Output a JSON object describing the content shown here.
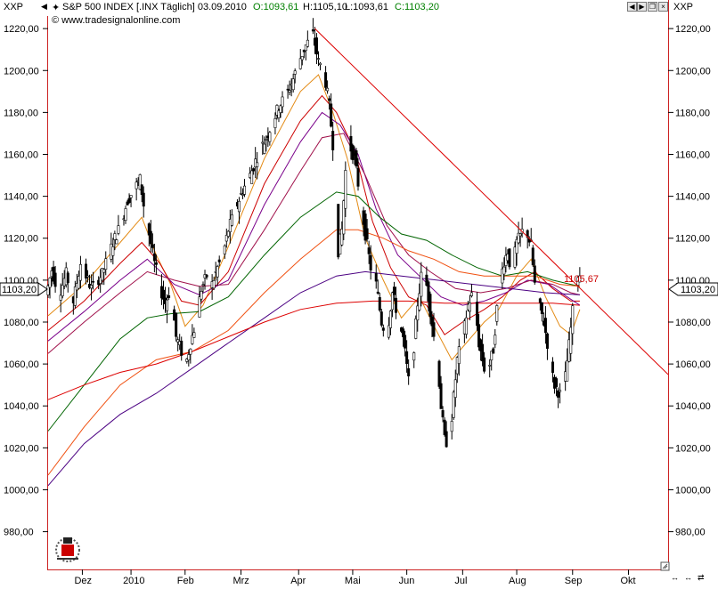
{
  "header": {
    "symbol_left": "XXP",
    "symbol_right": "XXP",
    "instrument": "S&P 500 INDEX [.INX  Täglich] 03.09.2010",
    "open": "O:1093,61",
    "high": "H:1105,10",
    "low": "L:1093,61",
    "close": "C:1103,20",
    "copyright": "© www.tradesignalonline.com",
    "colors": {
      "open": "#008000",
      "close": "#008000",
      "text": "#000000"
    }
  },
  "controls": [
    "arrow-left-icon",
    "arrow-right-icon",
    "restore-icon",
    "close-icon"
  ],
  "bottom_controls": [
    "scroll-horizontal-icon",
    "zoom-horizontal-icon",
    "fit-icon"
  ],
  "price_tag_left": "1103,20",
  "price_tag_right": "1103,20",
  "annotation": {
    "text": "1105,67",
    "color": "#cc0000"
  },
  "chart_data": {
    "type": "candlestick",
    "title": "S&P 500 INDEX [.INX  Täglich] 03.09.2010",
    "ylim": [
      962,
      1226
    ],
    "y_ticks": [
      980,
      1000,
      1020,
      1040,
      1060,
      1080,
      1100,
      1120,
      1140,
      1160,
      1180,
      1200,
      1220
    ],
    "y_tick_labels": [
      "980,00",
      "1000,00",
      "1020,00",
      "1040,00",
      "1060,00",
      "1080,00",
      "1100,00",
      "1120,00",
      "1140,00",
      "1160,00",
      "1180,00",
      "1200,00",
      "1220,00"
    ],
    "x_labels": [
      "Dez",
      "2010",
      "Feb",
      "Mrz",
      "Apr",
      "Mai",
      "Jun",
      "Jul",
      "Aug",
      "Sep",
      "Okt"
    ],
    "x_label_days": [
      19,
      46,
      76,
      107,
      139,
      169,
      199,
      230,
      260,
      291,
      322
    ],
    "x_range_days": [
      0,
      344
    ],
    "grid": false,
    "price_path": [
      [
        0,
        1093
      ],
      [
        3,
        1105
      ],
      [
        7,
        1093
      ],
      [
        11,
        1103
      ],
      [
        15,
        1090
      ],
      [
        19,
        1108
      ],
      [
        25,
        1096
      ],
      [
        31,
        1103
      ],
      [
        37,
        1118
      ],
      [
        41,
        1126
      ],
      [
        45,
        1138
      ],
      [
        49,
        1144
      ],
      [
        52,
        1148
      ],
      [
        54,
        1136
      ],
      [
        57,
        1122
      ],
      [
        60,
        1108
      ],
      [
        64,
        1094
      ],
      [
        66,
        1089
      ],
      [
        69,
        1096
      ],
      [
        72,
        1073
      ],
      [
        75,
        1066
      ],
      [
        77,
        1058
      ],
      [
        80,
        1070
      ],
      [
        83,
        1080
      ],
      [
        86,
        1096
      ],
      [
        89,
        1102
      ],
      [
        92,
        1098
      ],
      [
        95,
        1106
      ],
      [
        98,
        1112
      ],
      [
        101,
        1124
      ],
      [
        105,
        1134
      ],
      [
        109,
        1143
      ],
      [
        113,
        1150
      ],
      [
        117,
        1159
      ],
      [
        121,
        1166
      ],
      [
        125,
        1174
      ],
      [
        129,
        1183
      ],
      [
        133,
        1188
      ],
      [
        137,
        1196
      ],
      [
        140,
        1204
      ],
      [
        144,
        1212
      ],
      [
        148,
        1217
      ],
      [
        151,
        1204
      ],
      [
        154,
        1200
      ],
      [
        157,
        1183
      ],
      [
        160,
        1156
      ],
      [
        162,
        1114
      ],
      [
        164,
        1124
      ],
      [
        166,
        1152
      ],
      [
        168,
        1165
      ],
      [
        171,
        1158
      ],
      [
        174,
        1140
      ],
      [
        177,
        1122
      ],
      [
        180,
        1106
      ],
      [
        183,
        1098
      ],
      [
        186,
        1080
      ],
      [
        189,
        1074
      ],
      [
        192,
        1094
      ],
      [
        195,
        1083
      ],
      [
        198,
        1072
      ],
      [
        201,
        1052
      ],
      [
        203,
        1058
      ],
      [
        206,
        1089
      ],
      [
        209,
        1108
      ],
      [
        212,
        1092
      ],
      [
        215,
        1073
      ],
      [
        217,
        1063
      ],
      [
        219,
        1040
      ],
      [
        221,
        1024
      ],
      [
        223,
        1022
      ],
      [
        225,
        1035
      ],
      [
        228,
        1062
      ],
      [
        231,
        1073
      ],
      [
        234,
        1088
      ],
      [
        237,
        1095
      ],
      [
        240,
        1070
      ],
      [
        243,
        1058
      ],
      [
        246,
        1060
      ],
      [
        248,
        1067
      ],
      [
        251,
        1096
      ],
      [
        254,
        1109
      ],
      [
        256,
        1114
      ],
      [
        258,
        1103
      ],
      [
        261,
        1118
      ],
      [
        263,
        1121
      ],
      [
        265,
        1125
      ],
      [
        267,
        1122
      ],
      [
        269,
        1116
      ],
      [
        271,
        1098
      ],
      [
        273,
        1090
      ],
      [
        276,
        1080
      ],
      [
        278,
        1070
      ],
      [
        280,
        1058
      ],
      [
        282,
        1050
      ],
      [
        284,
        1047
      ],
      [
        286,
        1044
      ],
      [
        288,
        1054
      ],
      [
        290,
        1069
      ],
      [
        292,
        1085
      ],
      [
        294,
        1101
      ],
      [
        295,
        1103
      ]
    ],
    "series": [
      {
        "name": "",
        "color": "#e38a14",
        "values": [
          [
            0,
            1083
          ],
          [
            20,
            1098
          ],
          [
            40,
            1118
          ],
          [
            52,
            1130
          ],
          [
            60,
            1112
          ],
          [
            68,
            1098
          ],
          [
            76,
            1078
          ],
          [
            86,
            1088
          ],
          [
            100,
            1116
          ],
          [
            120,
            1158
          ],
          [
            140,
            1190
          ],
          [
            150,
            1198
          ],
          [
            158,
            1180
          ],
          [
            166,
            1158
          ],
          [
            176,
            1120
          ],
          [
            186,
            1100
          ],
          [
            196,
            1082
          ],
          [
            206,
            1092
          ],
          [
            216,
            1075
          ],
          [
            224,
            1062
          ],
          [
            232,
            1070
          ],
          [
            242,
            1080
          ],
          [
            250,
            1086
          ],
          [
            260,
            1102
          ],
          [
            268,
            1110
          ],
          [
            276,
            1092
          ],
          [
            284,
            1078
          ],
          [
            290,
            1074
          ],
          [
            295,
            1086
          ]
        ]
      },
      {
        "name": "",
        "color": "#cc0000",
        "values": [
          [
            0,
            1076
          ],
          [
            20,
            1090
          ],
          [
            40,
            1108
          ],
          [
            52,
            1118
          ],
          [
            62,
            1108
          ],
          [
            74,
            1090
          ],
          [
            84,
            1088
          ],
          [
            100,
            1104
          ],
          [
            120,
            1146
          ],
          [
            140,
            1176
          ],
          [
            152,
            1188
          ],
          [
            160,
            1180
          ],
          [
            170,
            1162
          ],
          [
            180,
            1128
          ],
          [
            190,
            1106
          ],
          [
            200,
            1092
          ],
          [
            210,
            1088
          ],
          [
            220,
            1074
          ],
          [
            230,
            1080
          ],
          [
            242,
            1086
          ],
          [
            252,
            1092
          ],
          [
            262,
            1100
          ],
          [
            270,
            1104
          ],
          [
            280,
            1096
          ],
          [
            290,
            1090
          ],
          [
            295,
            1090
          ]
        ]
      },
      {
        "name": "",
        "color": "#7a008a",
        "values": [
          [
            0,
            1071
          ],
          [
            20,
            1085
          ],
          [
            40,
            1100
          ],
          [
            55,
            1110
          ],
          [
            70,
            1098
          ],
          [
            84,
            1093
          ],
          [
            100,
            1100
          ],
          [
            120,
            1136
          ],
          [
            140,
            1166
          ],
          [
            152,
            1180
          ],
          [
            162,
            1174
          ],
          [
            172,
            1160
          ],
          [
            182,
            1134
          ],
          [
            194,
            1112
          ],
          [
            206,
            1102
          ],
          [
            218,
            1092
          ],
          [
            230,
            1088
          ],
          [
            242,
            1090
          ],
          [
            254,
            1094
          ],
          [
            266,
            1100
          ],
          [
            278,
            1098
          ],
          [
            288,
            1092
          ],
          [
            295,
            1088
          ]
        ]
      },
      {
        "name": "",
        "color": "#a0104a",
        "values": [
          [
            0,
            1065
          ],
          [
            20,
            1080
          ],
          [
            40,
            1094
          ],
          [
            55,
            1104
          ],
          [
            70,
            1100
          ],
          [
            84,
            1097
          ],
          [
            100,
            1098
          ],
          [
            120,
            1124
          ],
          [
            140,
            1152
          ],
          [
            152,
            1168
          ],
          [
            164,
            1170
          ],
          [
            176,
            1150
          ],
          [
            188,
            1126
          ],
          [
            200,
            1112
          ],
          [
            212,
            1104
          ],
          [
            226,
            1096
          ],
          [
            240,
            1094
          ],
          [
            254,
            1096
          ],
          [
            268,
            1100
          ],
          [
            280,
            1098
          ],
          [
            290,
            1094
          ],
          [
            295,
            1093
          ]
        ]
      },
      {
        "name": "",
        "color": "#006400",
        "values": [
          [
            0,
            1028
          ],
          [
            20,
            1050
          ],
          [
            40,
            1072
          ],
          [
            55,
            1082
          ],
          [
            68,
            1084
          ],
          [
            84,
            1085
          ],
          [
            100,
            1092
          ],
          [
            120,
            1112
          ],
          [
            140,
            1130
          ],
          [
            160,
            1142
          ],
          [
            172,
            1140
          ],
          [
            184,
            1130
          ],
          [
            196,
            1122
          ],
          [
            210,
            1119
          ],
          [
            224,
            1112
          ],
          [
            238,
            1106
          ],
          [
            252,
            1102
          ],
          [
            266,
            1104
          ],
          [
            280,
            1100
          ],
          [
            290,
            1098
          ],
          [
            295,
            1097
          ]
        ]
      },
      {
        "name": "",
        "color": "#f05010",
        "values": [
          [
            0,
            1007
          ],
          [
            20,
            1030
          ],
          [
            40,
            1050
          ],
          [
            60,
            1062
          ],
          [
            80,
            1066
          ],
          [
            100,
            1076
          ],
          [
            120,
            1094
          ],
          [
            140,
            1110
          ],
          [
            160,
            1124
          ],
          [
            172,
            1124
          ],
          [
            186,
            1120
          ],
          [
            200,
            1114
          ],
          [
            214,
            1110
          ],
          [
            228,
            1104
          ],
          [
            242,
            1102
          ],
          [
            256,
            1102
          ],
          [
            270,
            1102
          ],
          [
            284,
            1098
          ],
          [
            295,
            1097
          ]
        ]
      },
      {
        "name": "",
        "color": "#4b0082",
        "values": [
          [
            0,
            1002
          ],
          [
            20,
            1022
          ],
          [
            40,
            1036
          ],
          [
            60,
            1046
          ],
          [
            80,
            1058
          ],
          [
            100,
            1070
          ],
          [
            120,
            1082
          ],
          [
            140,
            1094
          ],
          [
            160,
            1102
          ],
          [
            176,
            1104
          ],
          [
            196,
            1102
          ],
          [
            216,
            1100
          ],
          [
            236,
            1098
          ],
          [
            256,
            1096
          ],
          [
            276,
            1094
          ],
          [
            295,
            1093
          ]
        ]
      },
      {
        "name": "",
        "color": "#dd0000",
        "values": [
          [
            0,
            1043
          ],
          [
            20,
            1050
          ],
          [
            40,
            1056
          ],
          [
            60,
            1060
          ],
          [
            80,
            1066
          ],
          [
            100,
            1073
          ],
          [
            120,
            1080
          ],
          [
            140,
            1086
          ],
          [
            160,
            1089
          ],
          [
            180,
            1090
          ],
          [
            200,
            1090
          ],
          [
            220,
            1089
          ],
          [
            240,
            1089
          ],
          [
            260,
            1089
          ],
          [
            280,
            1089
          ],
          [
            295,
            1088
          ]
        ]
      }
    ],
    "trendline": {
      "color": "#dd0000",
      "points": [
        [
          148,
          1220
        ],
        [
          344,
          1055
        ]
      ]
    }
  }
}
